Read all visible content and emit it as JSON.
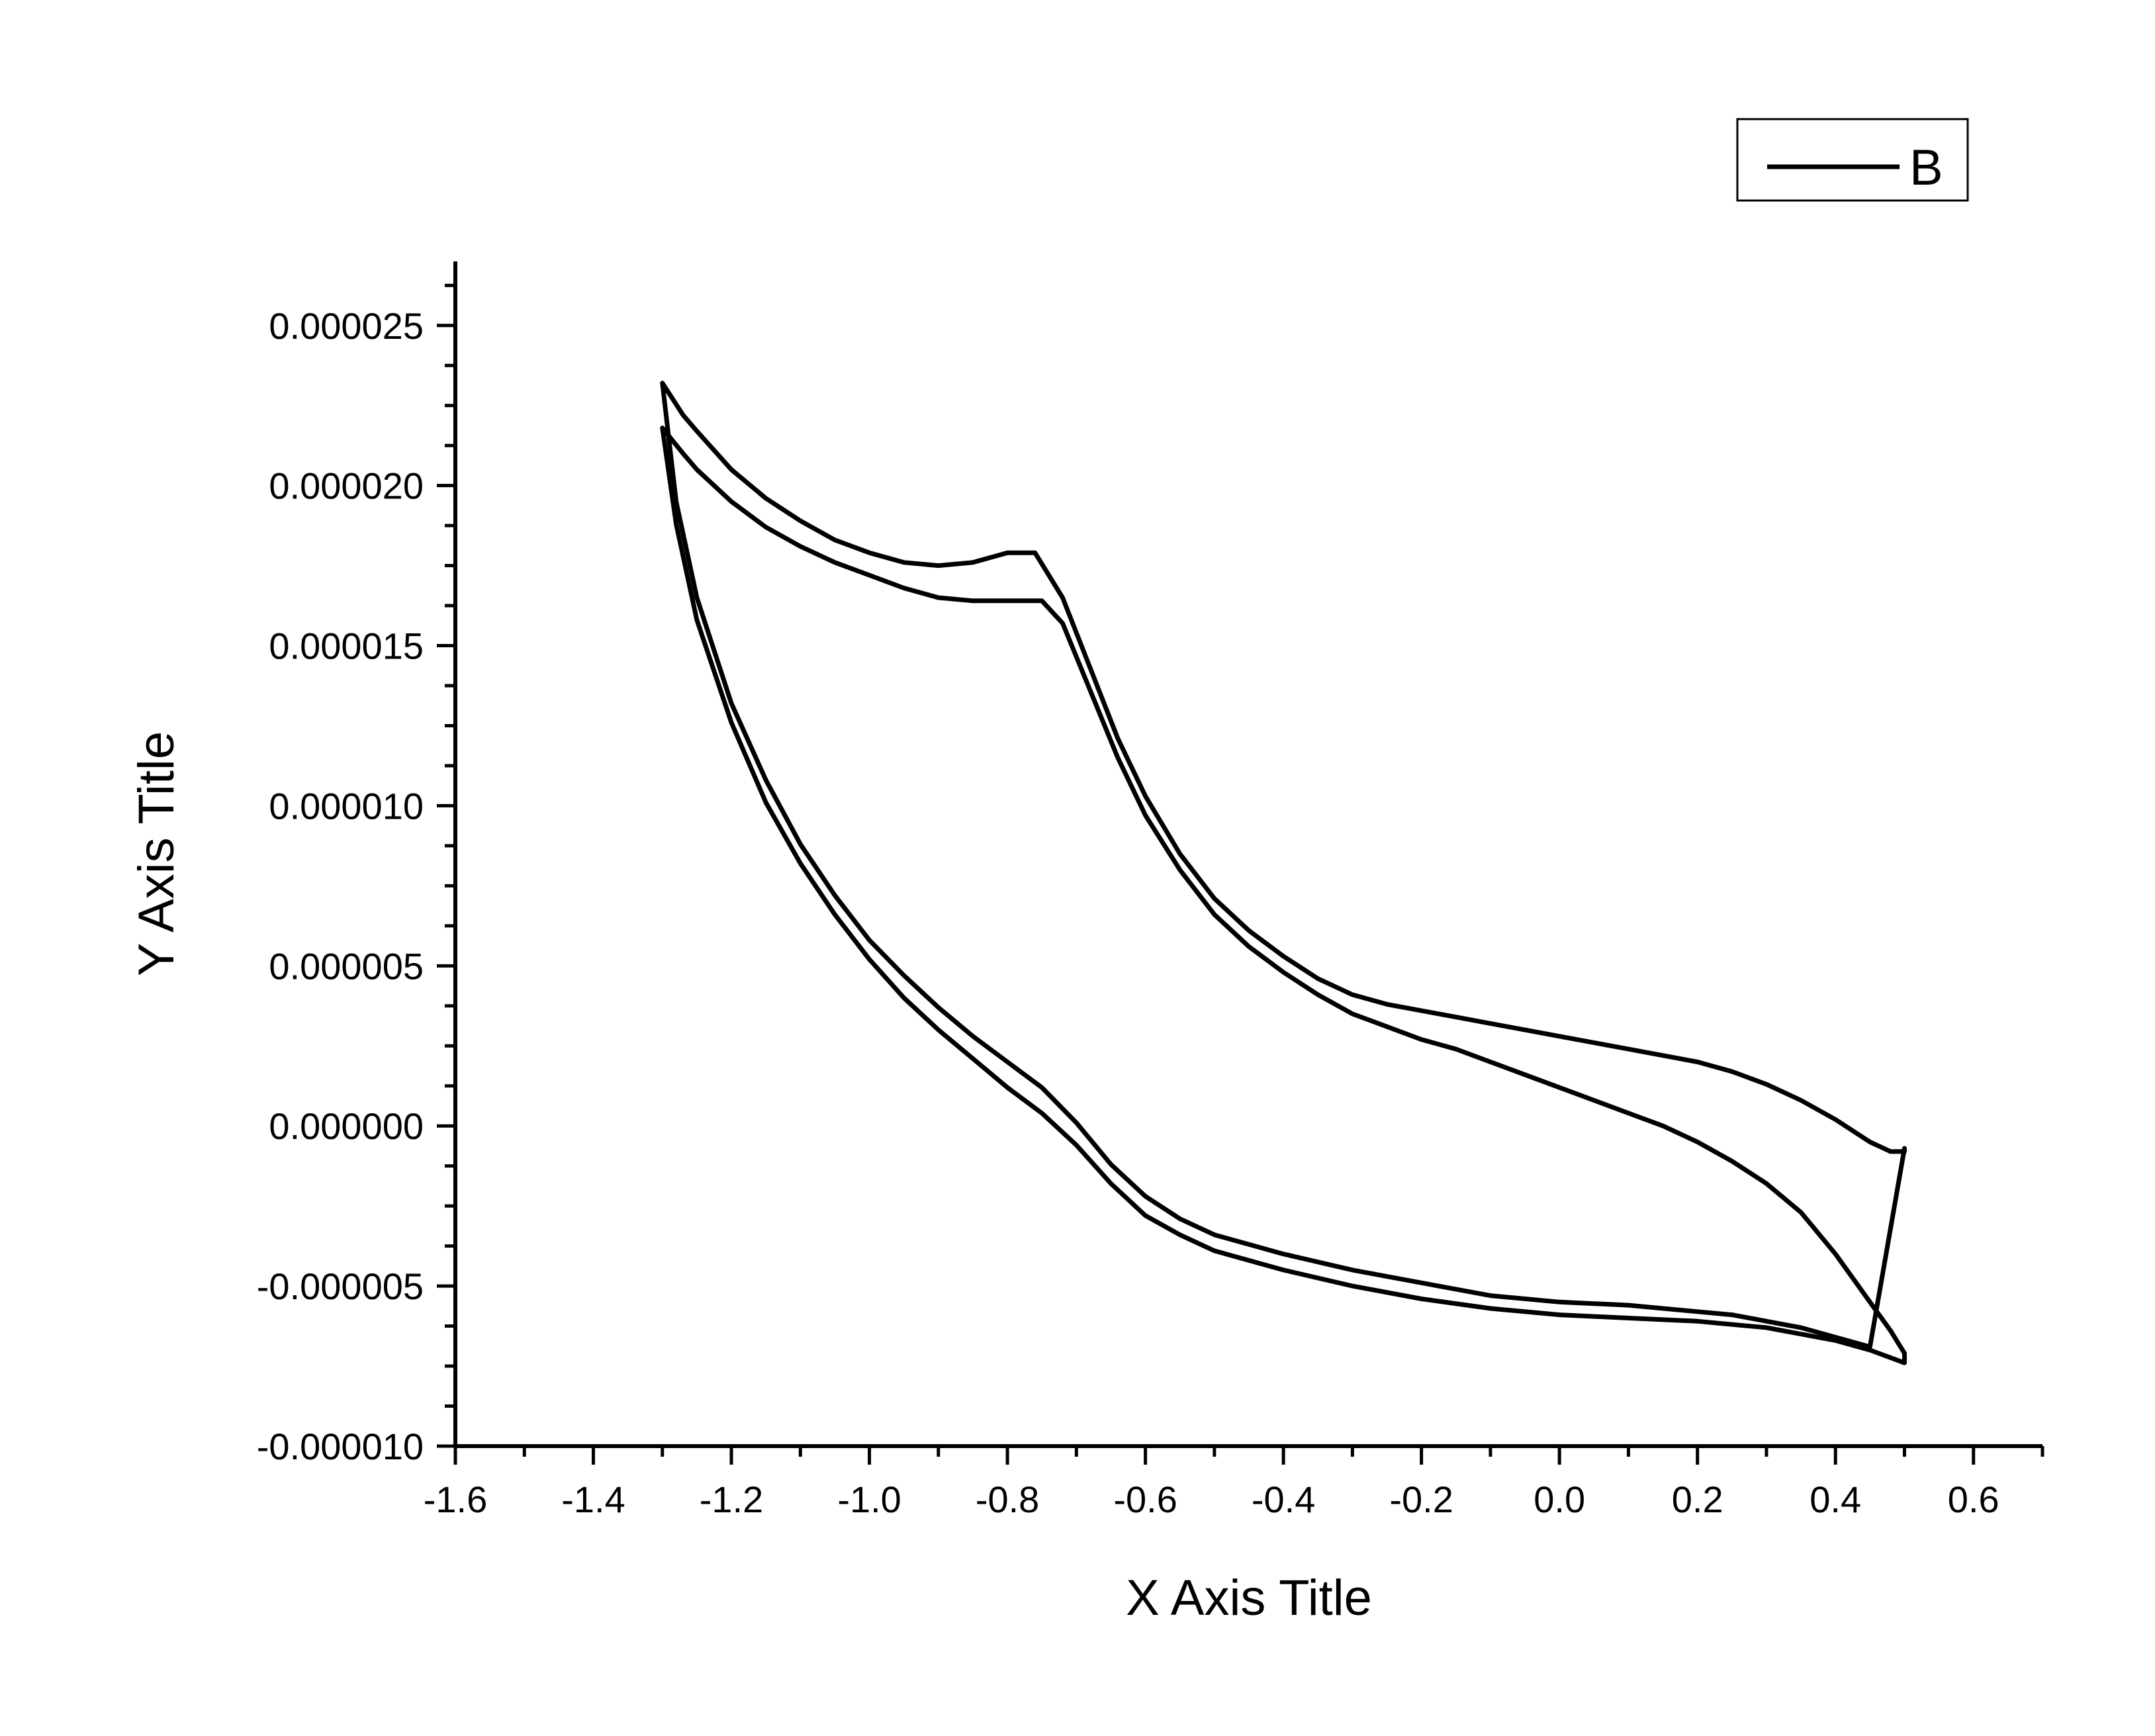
{
  "chart_data": {
    "type": "line",
    "title": "",
    "xlabel": "X Axis Title",
    "ylabel": "Y Axis Title",
    "xlim": [
      -1.6,
      0.7
    ],
    "ylim": [
      -1e-05,
      2.7e-05
    ],
    "x_ticks": [
      -1.6,
      -1.4,
      -1.2,
      -1.0,
      -0.8,
      -0.6,
      -0.4,
      -0.2,
      0.0,
      0.2,
      0.4,
      0.6
    ],
    "x_tick_labels": [
      "-1.6",
      "-1.4",
      "-1.2",
      "-1.0",
      "-0.8",
      "-0.6",
      "-0.4",
      "-0.2",
      "0.0",
      "0.2",
      "0.4",
      "0.6"
    ],
    "y_ticks": [
      -1e-05,
      -5e-06,
      0,
      5e-06,
      1e-05,
      1.5e-05,
      2e-05,
      2.5e-05
    ],
    "y_tick_labels": [
      "-0.000010",
      "-0.000005",
      "0.000000",
      "0.000005",
      "0.000010",
      "0.000015",
      "0.000020",
      "0.000025"
    ],
    "grid": false,
    "legend": {
      "position": "top-right",
      "entries": [
        "B"
      ]
    },
    "line_color": "#000000",
    "series": [
      {
        "name": "B",
        "cycles": [
          {
            "x": [
              -1.3,
              -1.27,
              -1.25,
              -1.2,
              -1.15,
              -1.1,
              -1.05,
              -1.0,
              -0.95,
              -0.9,
              -0.85,
              -0.8,
              -0.76,
              -0.72,
              -0.68,
              -0.64,
              -0.6,
              -0.55,
              -0.5,
              -0.45,
              -0.4,
              -0.35,
              -0.3,
              -0.25,
              -0.2,
              -0.15,
              -0.1,
              -0.05,
              0.0,
              0.05,
              0.1,
              0.15,
              0.2,
              0.25,
              0.3,
              0.35,
              0.4,
              0.45,
              0.48,
              0.5,
              0.5,
              0.45,
              0.4,
              0.35,
              0.3,
              0.25,
              0.2,
              0.1,
              0.0,
              -0.1,
              -0.2,
              -0.3,
              -0.4,
              -0.5,
              -0.55,
              -0.6,
              -0.65,
              -0.7,
              -0.75,
              -0.8,
              -0.85,
              -0.9,
              -0.95,
              -1.0,
              -1.05,
              -1.1,
              -1.15,
              -1.2,
              -1.25,
              -1.28,
              -1.3
            ],
            "y": [
              2.32e-05,
              2.22e-05,
              2.17e-05,
              2.05e-05,
              1.96e-05,
              1.89e-05,
              1.83e-05,
              1.79e-05,
              1.76e-05,
              1.75e-05,
              1.76e-05,
              1.79e-05,
              1.79e-05,
              1.65e-05,
              1.43e-05,
              1.21e-05,
              1.03e-05,
              8.5e-06,
              7.1e-06,
              6.1e-06,
              5.3e-06,
              4.6e-06,
              4.1e-06,
              3.8e-06,
              3.6e-06,
              3.4e-06,
              3.2e-06,
              3e-06,
              2.8e-06,
              2.6e-06,
              2.4e-06,
              2.2e-06,
              2e-06,
              1.7e-06,
              1.3e-06,
              8e-07,
              2e-07,
              -5e-07,
              -8e-07,
              -8e-07,
              -7e-07,
              -6.9e-06,
              -6.6e-06,
              -6.3e-06,
              -6.1e-06,
              -5.9e-06,
              -5.8e-06,
              -5.6e-06,
              -5.5e-06,
              -5.3e-06,
              -4.9e-06,
              -4.5e-06,
              -4e-06,
              -3.4e-06,
              -2.9e-06,
              -2.2e-06,
              -1.2e-06,
              1e-07,
              1.2e-06,
              2e-06,
              2.8e-06,
              3.7e-06,
              4.7e-06,
              5.8e-06,
              7.2e-06,
              8.8e-06,
              1.08e-05,
              1.32e-05,
              1.65e-05,
              1.95e-05,
              2.32e-05
            ]
          },
          {
            "x": [
              -1.3,
              -1.27,
              -1.25,
              -1.2,
              -1.15,
              -1.1,
              -1.05,
              -1.0,
              -0.95,
              -0.9,
              -0.85,
              -0.8,
              -0.75,
              -0.72,
              -0.68,
              -0.64,
              -0.6,
              -0.55,
              -0.5,
              -0.45,
              -0.4,
              -0.35,
              -0.3,
              -0.25,
              -0.2,
              -0.15,
              -0.1,
              -0.05,
              0.0,
              0.05,
              0.1,
              0.15,
              0.2,
              0.25,
              0.3,
              0.35,
              0.4,
              0.45,
              0.48,
              0.5,
              0.5,
              0.45,
              0.4,
              0.35,
              0.3,
              0.25,
              0.2,
              0.1,
              0.0,
              -0.1,
              -0.2,
              -0.3,
              -0.4,
              -0.5,
              -0.55,
              -0.6,
              -0.65,
              -0.7,
              -0.75,
              -0.8,
              -0.85,
              -0.9,
              -0.95,
              -1.0,
              -1.05,
              -1.1,
              -1.15,
              -1.2,
              -1.25,
              -1.28,
              -1.3
            ],
            "y": [
              2.18e-05,
              2.1e-05,
              2.05e-05,
              1.95e-05,
              1.87e-05,
              1.81e-05,
              1.76e-05,
              1.72e-05,
              1.68e-05,
              1.65e-05,
              1.64e-05,
              1.64e-05,
              1.64e-05,
              1.57e-05,
              1.36e-05,
              1.15e-05,
              9.7e-06,
              8e-06,
              6.6e-06,
              5.6e-06,
              4.8e-06,
              4.1e-06,
              3.5e-06,
              3.1e-06,
              2.7e-06,
              2.4e-06,
              2e-06,
              1.6e-06,
              1.2e-06,
              8e-07,
              4e-07,
              0.0,
              -5e-07,
              -1.1e-06,
              -1.8e-06,
              -2.7e-06,
              -4e-06,
              -5.5e-06,
              -6.4e-06,
              -7.1e-06,
              -7.4e-06,
              -7e-06,
              -6.7e-06,
              -6.5e-06,
              -6.3e-06,
              -6.2e-06,
              -6.1e-06,
              -6e-06,
              -5.9e-06,
              -5.7e-06,
              -5.4e-06,
              -5e-06,
              -4.5e-06,
              -3.9e-06,
              -3.4e-06,
              -2.8e-06,
              -1.8e-06,
              -6e-07,
              4e-07,
              1.2e-06,
              2.1e-06,
              3e-06,
              4e-06,
              5.2e-06,
              6.6e-06,
              8.2e-06,
              1.01e-05,
              1.26e-05,
              1.58e-05,
              1.88e-05,
              2.18e-05
            ]
          }
        ]
      }
    ]
  }
}
